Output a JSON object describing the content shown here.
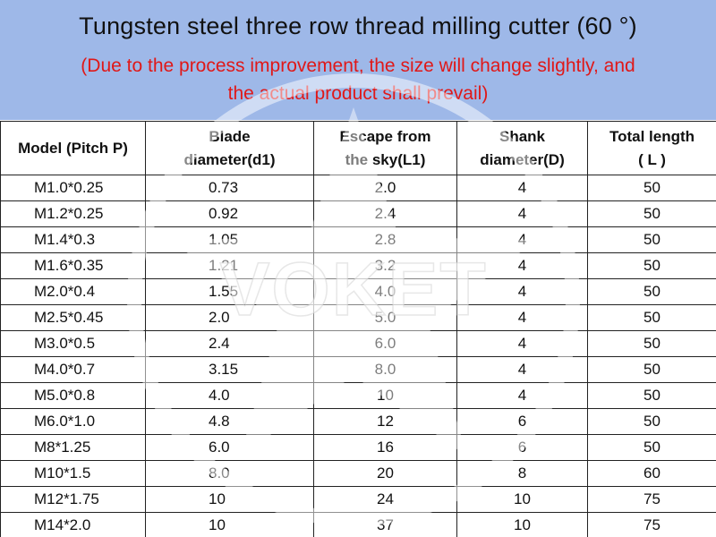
{
  "header": {
    "title": "Tungsten steel three row thread milling cutter (60 °)",
    "subtitle_line1": "(Due to the process improvement, the size will change slightly, and",
    "subtitle_line2": "the actual product shall prevail)"
  },
  "watermark": {
    "text": "VOKET"
  },
  "colors": {
    "header_bg": "#9eb8e8",
    "subtitle": "#e01818"
  },
  "table": {
    "headers": [
      {
        "line1": "Model (Pitch P)",
        "line2": ""
      },
      {
        "line1": "Blade",
        "line2": "diameter(d1)"
      },
      {
        "line1": "Escape from",
        "line2": "the sky(L1)"
      },
      {
        "line1": "Shank",
        "line2": "diameter(D)"
      },
      {
        "line1": "Total length",
        "line2": "( L )"
      }
    ],
    "rows": [
      [
        "M1.0*0.25",
        "0.73",
        "2.0",
        "4",
        "50"
      ],
      [
        "M1.2*0.25",
        "0.92",
        "2.4",
        "4",
        "50"
      ],
      [
        "M1.4*0.3",
        "1.05",
        "2.8",
        "4",
        "50"
      ],
      [
        "M1.6*0.35",
        "1.21",
        "3.2",
        "4",
        "50"
      ],
      [
        "M2.0*0.4",
        "1.55",
        "4.0",
        "4",
        "50"
      ],
      [
        "M2.5*0.45",
        "2.0",
        "5.0",
        "4",
        "50"
      ],
      [
        "M3.0*0.5",
        "2.4",
        "6.0",
        "4",
        "50"
      ],
      [
        "M4.0*0.7",
        "3.15",
        "8.0",
        "4",
        "50"
      ],
      [
        "M5.0*0.8",
        "4.0",
        "10",
        "4",
        "50"
      ],
      [
        "M6.0*1.0",
        "4.8",
        "12",
        "6",
        "50"
      ],
      [
        "M8*1.25",
        "6.0",
        "16",
        "6",
        "50"
      ],
      [
        "M10*1.5",
        "8.0",
        "20",
        "8",
        "60"
      ],
      [
        "M12*1.75",
        "10",
        "24",
        "10",
        "75"
      ],
      [
        "M14*2.0",
        "10",
        "37",
        "10",
        "75"
      ]
    ]
  }
}
